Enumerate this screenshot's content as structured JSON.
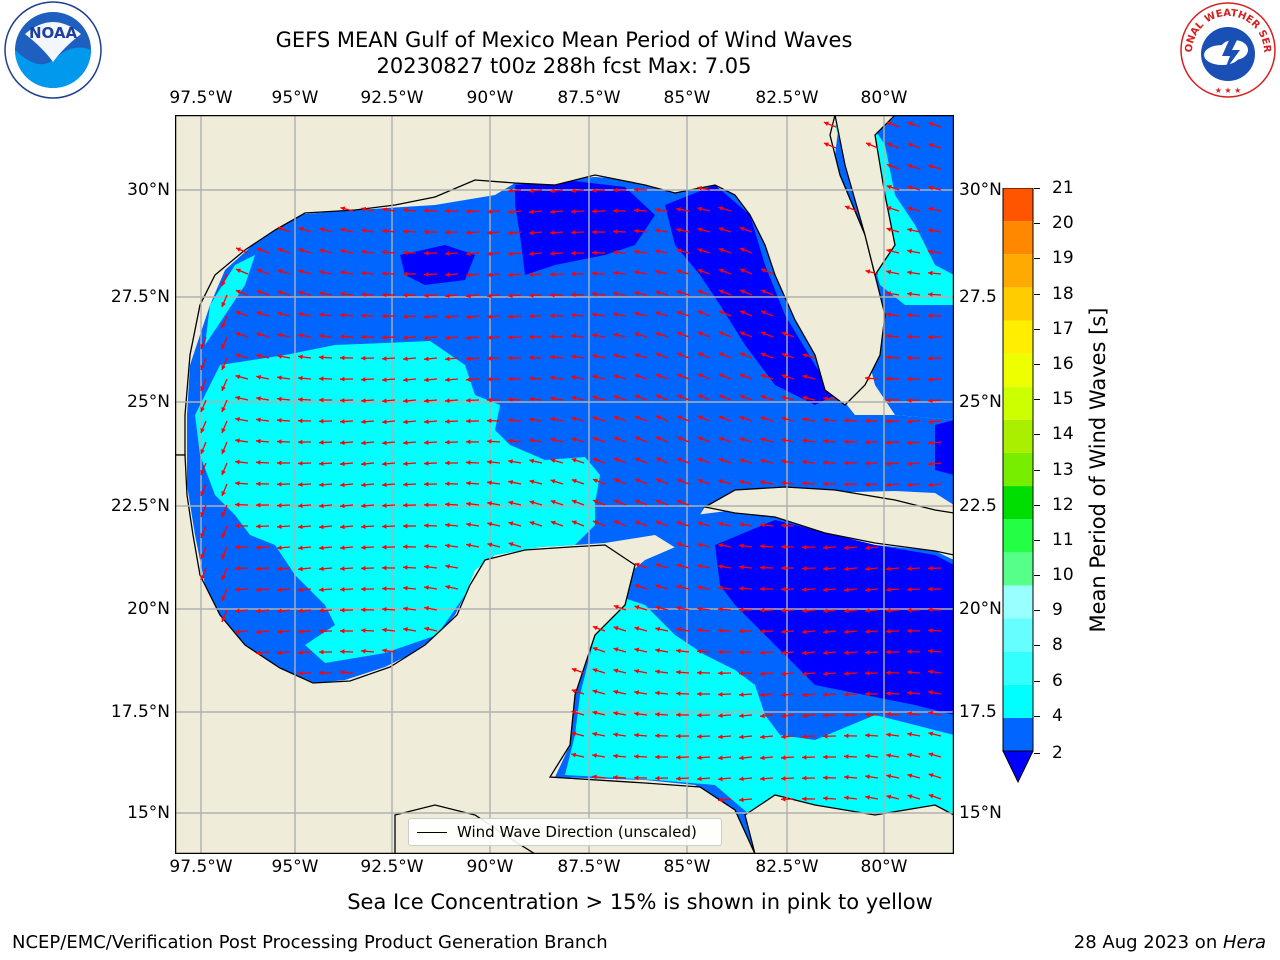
{
  "header": {
    "title_line1": "GEFS MEAN Gulf of Mexico Mean Period of Wind Waves",
    "title_line2": "20230827 t00z 288h fcst   Max: 7.05"
  },
  "logos": {
    "left": "NOAA",
    "right": "NATIONAL WEATHER SERVICE"
  },
  "map": {
    "lon_ticks": [
      "97.5°W",
      "95°W",
      "92.5°W",
      "90°W",
      "87.5°W",
      "85°W",
      "82.5°W",
      "80°W"
    ],
    "lat_ticks_left": [
      "30°N",
      "27.5°N",
      "25°N",
      "22.5°N",
      "20°N",
      "17.5°N",
      "15°N"
    ],
    "lat_ticks_right": [
      "30°N",
      "27.5",
      "25°N",
      "22.5",
      "20°N",
      "17.5",
      "15°N"
    ],
    "legend_label": "Wind Wave Direction (unscaled)",
    "colors": {
      "land": "#efedd9",
      "grid": "#b0b0b0",
      "arrow": "#ff0000"
    }
  },
  "colorbar": {
    "title": "Mean Period of Wind Waves [s]",
    "tick_labels": [
      "2",
      "4",
      "6",
      "8",
      "9",
      "10",
      "11",
      "12",
      "13",
      "14",
      "15",
      "16",
      "17",
      "18",
      "19",
      "20",
      "21"
    ],
    "colors": [
      "#0066ff",
      "#00ffff",
      "#33ffff",
      "#66ffff",
      "#99ffff",
      "#55ff88",
      "#22ff44",
      "#00dd00",
      "#77ee00",
      "#aaee00",
      "#ccff00",
      "#eeff00",
      "#ffee00",
      "#ffcc00",
      "#ffaa00",
      "#ff8800",
      "#ff5500",
      "#ff2200"
    ],
    "extend_color": "#0000ff"
  },
  "note": "Sea Ice Concentration > 15% is shown in pink to yellow",
  "footer": {
    "left": "NCEP/EMC/Verification Post Processing Product Generation Branch",
    "right_prefix": "28 Aug 2023 on ",
    "right_host": "Hera"
  }
}
